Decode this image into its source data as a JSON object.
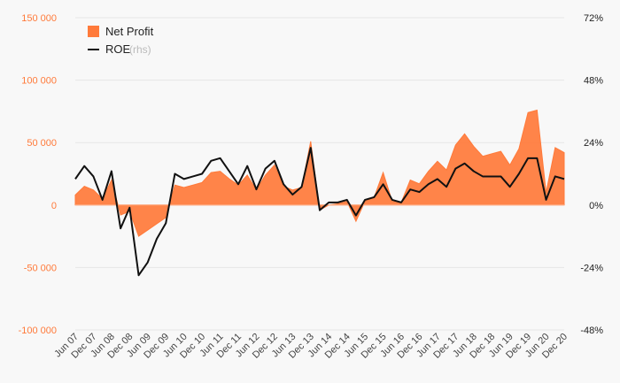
{
  "chart_data": {
    "type": "area",
    "title": "",
    "xlabel": "",
    "ylabel": "",
    "x": [
      "Jun 07",
      "Sep 07",
      "Dec 07",
      "Mar 08",
      "Jun 08",
      "Sep 08",
      "Dec 08",
      "Mar 09",
      "Jun 09",
      "Sep 09",
      "Dec 09",
      "Mar 10",
      "Jun 10",
      "Sep 10",
      "Dec 10",
      "Mar 11",
      "Jun 11",
      "Sep 11",
      "Dec 11",
      "Mar 12",
      "Jun 12",
      "Sep 12",
      "Dec 12",
      "Mar 13",
      "Jun 13",
      "Sep 13",
      "Dec 13",
      "Mar 14",
      "Jun 14",
      "Sep 14",
      "Dec 14",
      "Mar 15",
      "Jun 15",
      "Sep 15",
      "Dec 15",
      "Mar 16",
      "Jun 16",
      "Sep 16",
      "Dec 16",
      "Mar 17",
      "Jun 17",
      "Sep 17",
      "Dec 17",
      "Mar 18",
      "Jun 18",
      "Sep 18",
      "Dec 18",
      "Mar 19",
      "Jun 19",
      "Sep 19",
      "Dec 19",
      "Mar 20",
      "Jun 20",
      "Sep 20",
      "Dec 20"
    ],
    "x_tick_labels": [
      "Jun 07",
      "Dec 07",
      "Jun 08",
      "Dec 08",
      "Jun 09",
      "Dec 09",
      "Jun 10",
      "Dec 10",
      "Jun 11",
      "Dec 11",
      "Jun 12",
      "Dec 12",
      "Jun 13",
      "Dec 13",
      "Jun 14",
      "Dec 14",
      "Jun 15",
      "Dec 15",
      "Jun 16",
      "Dec 16",
      "Jun 17",
      "Dec 17",
      "Jun 18",
      "Dec 18",
      "Jun 19",
      "Dec 19",
      "Jun 20",
      "Dec 20"
    ],
    "y_left": {
      "min": -100000,
      "max": 150000,
      "ticks": [
        "-100 000",
        "-50 000",
        "0",
        "50 000",
        "100 000",
        "150 000"
      ],
      "tick_values": [
        -100000,
        -50000,
        0,
        50000,
        100000,
        150000
      ]
    },
    "y_right": {
      "min": -48,
      "max": 72,
      "ticks": [
        "-48%",
        "-24%",
        "0%",
        "24%",
        "48%",
        "72%"
      ],
      "tick_values": [
        -48,
        -24,
        0,
        24,
        48,
        72
      ]
    },
    "grid": true,
    "legend_position": "top-left",
    "series": [
      {
        "name": "Net Profit",
        "type": "area",
        "axis": "left",
        "color": "#ff7a3a",
        "values": [
          8000,
          15000,
          12000,
          5000,
          20000,
          -8000,
          -5000,
          -25000,
          -20000,
          -15000,
          -10000,
          16000,
          14000,
          16000,
          18000,
          26000,
          27000,
          21000,
          16000,
          24000,
          12000,
          24000,
          32000,
          15000,
          12000,
          14000,
          51000,
          -4000,
          0,
          1000,
          3000,
          -13000,
          3000,
          6000,
          26000,
          3000,
          2000,
          20000,
          17000,
          27000,
          35000,
          28000,
          48000,
          57000,
          47000,
          39000,
          41000,
          43000,
          32000,
          45000,
          74000,
          76000,
          10000,
          46000,
          42000
        ]
      },
      {
        "name": "ROE",
        "name_note": "(rhs)",
        "type": "line",
        "axis": "right",
        "color": "#111111",
        "values": [
          10,
          15,
          11,
          2,
          13,
          -9,
          -1,
          -27,
          -22,
          -13,
          -7,
          12,
          10,
          11,
          12,
          17,
          18,
          13,
          8,
          15,
          6,
          14,
          17,
          8,
          4,
          7,
          22,
          -2,
          1,
          1,
          2,
          -4,
          2,
          3,
          8,
          2,
          1,
          6,
          5,
          8,
          10,
          7,
          14,
          16,
          13,
          11,
          11,
          11,
          7,
          12,
          18,
          18,
          2,
          11,
          10
        ]
      }
    ]
  }
}
